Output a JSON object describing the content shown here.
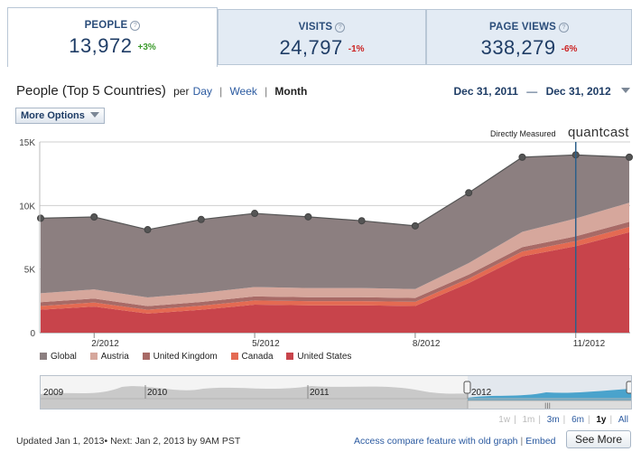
{
  "tabs": [
    {
      "label": "PEOPLE",
      "value": "13,972",
      "change": "+3%",
      "trend": "up",
      "active": true
    },
    {
      "label": "VISITS",
      "value": "24,797",
      "change": "-1%",
      "trend": "down",
      "active": false
    },
    {
      "label": "PAGE VIEWS",
      "value": "338,279",
      "change": "-6%",
      "trend": "down",
      "active": false
    }
  ],
  "help_glyph": "?",
  "header": {
    "title": "People (Top 5 Countries)",
    "per": "per",
    "granularity": [
      "Day",
      "Week",
      "Month"
    ],
    "selected_granularity": "Month",
    "separator": "|"
  },
  "date_range": {
    "start": "Dec 31, 2011",
    "dash": "—",
    "end": "Dec 31, 2012"
  },
  "more_options": "More Options",
  "branding": {
    "measured": "Directly Measured",
    "logo": "quantcast"
  },
  "chart_data": {
    "type": "area",
    "stacked": true,
    "x": [
      "2012-01",
      "2012-02",
      "2012-03",
      "2012-04",
      "2012-05",
      "2012-06",
      "2012-07",
      "2012-08",
      "2012-09",
      "2012-10",
      "2012-11",
      "2012-12"
    ],
    "x_tick_labels": [
      "2/2012",
      "5/2012",
      "8/2012",
      "11/2012"
    ],
    "ytick_labels": [
      "0",
      "5K",
      "10K",
      "15K"
    ],
    "ylim": [
      0,
      15000
    ],
    "grid": true,
    "series": [
      {
        "name": "United States",
        "color": "#c8444b",
        "values": [
          1800,
          2050,
          1500,
          1800,
          2200,
          2150,
          2150,
          2100,
          3900,
          6000,
          6800,
          7900
        ]
      },
      {
        "name": "Canada",
        "color": "#e46a52",
        "values": [
          300,
          320,
          300,
          320,
          330,
          330,
          330,
          330,
          350,
          380,
          400,
          420
        ]
      },
      {
        "name": "United Kingdom",
        "color": "#a86a66",
        "values": [
          300,
          310,
          290,
          300,
          320,
          310,
          310,
          300,
          320,
          350,
          380,
          400
        ]
      },
      {
        "name": "Austria",
        "color": "#d6a79c",
        "values": [
          700,
          720,
          680,
          700,
          740,
          720,
          720,
          700,
          900,
          1200,
          1400,
          1500
        ]
      },
      {
        "name": "Global",
        "color": "#8c7f80",
        "values": [
          5900,
          5700,
          5330,
          5780,
          5790,
          5600,
          5290,
          4970,
          5530,
          5870,
          5000,
          3580
        ]
      }
    ],
    "totals": [
      9000,
      9100,
      8100,
      8900,
      9380,
      9110,
      8800,
      8400,
      11000,
      13800,
      13980,
      13800
    ],
    "marker_index": 10
  },
  "navigator": {
    "labels": [
      "2009",
      "2010",
      "2011",
      "2012"
    ]
  },
  "zoom": {
    "options": [
      "1w",
      "1m",
      "3m",
      "6m",
      "1y",
      "All"
    ],
    "active": "1y",
    "separator": "|"
  },
  "footer": {
    "updated": "Updated Jan 1, 2013• Next: Jan 2, 2013 by 9AM PST",
    "compare": "Access compare feature with old graph",
    "bar": "|",
    "embed": "Embed",
    "see_more": "See More"
  }
}
